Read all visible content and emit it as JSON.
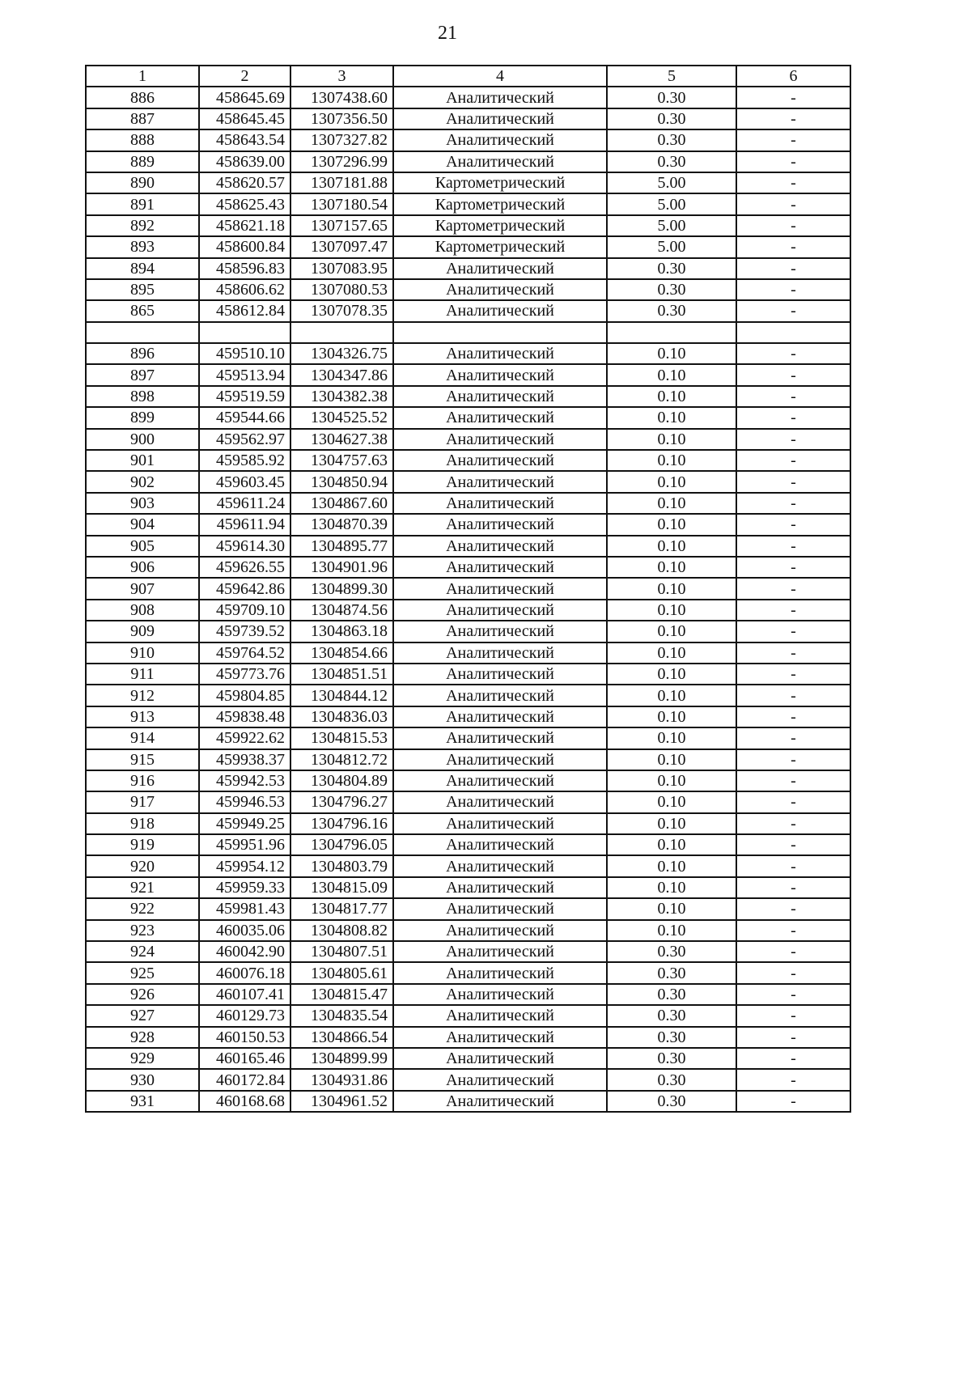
{
  "page_number": "21",
  "table": {
    "headers": [
      "1",
      "2",
      "3",
      "4",
      "5",
      "6"
    ],
    "rows": [
      [
        "886",
        "458645.69",
        "1307438.60",
        "Аналитический",
        "0.30",
        "-"
      ],
      [
        "887",
        "458645.45",
        "1307356.50",
        "Аналитический",
        "0.30",
        "-"
      ],
      [
        "888",
        "458643.54",
        "1307327.82",
        "Аналитический",
        "0.30",
        "-"
      ],
      [
        "889",
        "458639.00",
        "1307296.99",
        "Аналитический",
        "0.30",
        "-"
      ],
      [
        "890",
        "458620.57",
        "1307181.88",
        "Картометрический",
        "5.00",
        "-"
      ],
      [
        "891",
        "458625.43",
        "1307180.54",
        "Картометрический",
        "5.00",
        "-"
      ],
      [
        "892",
        "458621.18",
        "1307157.65",
        "Картометрический",
        "5.00",
        "-"
      ],
      [
        "893",
        "458600.84",
        "1307097.47",
        "Картометрический",
        "5.00",
        "-"
      ],
      [
        "894",
        "458596.83",
        "1307083.95",
        "Аналитический",
        "0.30",
        "-"
      ],
      [
        "895",
        "458606.62",
        "1307080.53",
        "Аналитический",
        "0.30",
        "-"
      ],
      [
        "865",
        "458612.84",
        "1307078.35",
        "Аналитический",
        "0.30",
        "-"
      ],
      [
        "",
        "",
        "",
        "",
        "",
        ""
      ],
      [
        "896",
        "459510.10",
        "1304326.75",
        "Аналитический",
        "0.10",
        "-"
      ],
      [
        "897",
        "459513.94",
        "1304347.86",
        "Аналитический",
        "0.10",
        "-"
      ],
      [
        "898",
        "459519.59",
        "1304382.38",
        "Аналитический",
        "0.10",
        "-"
      ],
      [
        "899",
        "459544.66",
        "1304525.52",
        "Аналитический",
        "0.10",
        "-"
      ],
      [
        "900",
        "459562.97",
        "1304627.38",
        "Аналитический",
        "0.10",
        "-"
      ],
      [
        "901",
        "459585.92",
        "1304757.63",
        "Аналитический",
        "0.10",
        "-"
      ],
      [
        "902",
        "459603.45",
        "1304850.94",
        "Аналитический",
        "0.10",
        "-"
      ],
      [
        "903",
        "459611.24",
        "1304867.60",
        "Аналитический",
        "0.10",
        "-"
      ],
      [
        "904",
        "459611.94",
        "1304870.39",
        "Аналитический",
        "0.10",
        "-"
      ],
      [
        "905",
        "459614.30",
        "1304895.77",
        "Аналитический",
        "0.10",
        "-"
      ],
      [
        "906",
        "459626.55",
        "1304901.96",
        "Аналитический",
        "0.10",
        "-"
      ],
      [
        "907",
        "459642.86",
        "1304899.30",
        "Аналитический",
        "0.10",
        "-"
      ],
      [
        "908",
        "459709.10",
        "1304874.56",
        "Аналитический",
        "0.10",
        "-"
      ],
      [
        "909",
        "459739.52",
        "1304863.18",
        "Аналитический",
        "0.10",
        "-"
      ],
      [
        "910",
        "459764.52",
        "1304854.66",
        "Аналитический",
        "0.10",
        "-"
      ],
      [
        "911",
        "459773.76",
        "1304851.51",
        "Аналитический",
        "0.10",
        "-"
      ],
      [
        "912",
        "459804.85",
        "1304844.12",
        "Аналитический",
        "0.10",
        "-"
      ],
      [
        "913",
        "459838.48",
        "1304836.03",
        "Аналитический",
        "0.10",
        "-"
      ],
      [
        "914",
        "459922.62",
        "1304815.53",
        "Аналитический",
        "0.10",
        "-"
      ],
      [
        "915",
        "459938.37",
        "1304812.72",
        "Аналитический",
        "0.10",
        "-"
      ],
      [
        "916",
        "459942.53",
        "1304804.89",
        "Аналитический",
        "0.10",
        "-"
      ],
      [
        "917",
        "459946.53",
        "1304796.27",
        "Аналитический",
        "0.10",
        "-"
      ],
      [
        "918",
        "459949.25",
        "1304796.16",
        "Аналитический",
        "0.10",
        "-"
      ],
      [
        "919",
        "459951.96",
        "1304796.05",
        "Аналитический",
        "0.10",
        "-"
      ],
      [
        "920",
        "459954.12",
        "1304803.79",
        "Аналитический",
        "0.10",
        "-"
      ],
      [
        "921",
        "459959.33",
        "1304815.09",
        "Аналитический",
        "0.10",
        "-"
      ],
      [
        "922",
        "459981.43",
        "1304817.77",
        "Аналитический",
        "0.10",
        "-"
      ],
      [
        "923",
        "460035.06",
        "1304808.82",
        "Аналитический",
        "0.10",
        "-"
      ],
      [
        "924",
        "460042.90",
        "1304807.51",
        "Аналитический",
        "0.30",
        "-"
      ],
      [
        "925",
        "460076.18",
        "1304805.61",
        "Аналитический",
        "0.30",
        "-"
      ],
      [
        "926",
        "460107.41",
        "1304815.47",
        "Аналитический",
        "0.30",
        "-"
      ],
      [
        "927",
        "460129.73",
        "1304835.54",
        "Аналитический",
        "0.30",
        "-"
      ],
      [
        "928",
        "460150.53",
        "1304866.54",
        "Аналитический",
        "0.30",
        "-"
      ],
      [
        "929",
        "460165.46",
        "1304899.99",
        "Аналитический",
        "0.30",
        "-"
      ],
      [
        "930",
        "460172.84",
        "1304931.86",
        "Аналитический",
        "0.30",
        "-"
      ],
      [
        "931",
        "460168.68",
        "1304961.52",
        "Аналитический",
        "0.30",
        "-"
      ]
    ]
  }
}
